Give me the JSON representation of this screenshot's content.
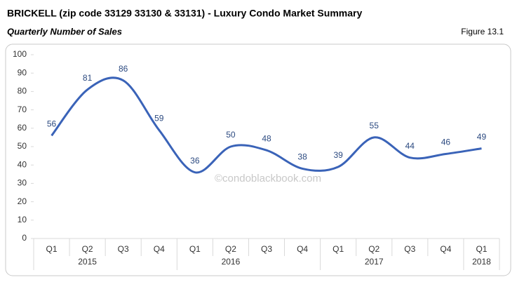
{
  "chart_data": {
    "type": "line",
    "title": "BRICKELL (zip code 33129 33130 & 33131) - Luxury Condo Market Summary",
    "subtitle": "Quarterly Number of Sales",
    "figure_label": "Figure 13.1",
    "watermark": "©condoblackbook.com",
    "groups": [
      {
        "label": "2015",
        "categories": [
          "Q1",
          "Q2",
          "Q3",
          "Q4"
        ]
      },
      {
        "label": "2016",
        "categories": [
          "Q1",
          "Q2",
          "Q3",
          "Q4"
        ]
      },
      {
        "label": "2017",
        "categories": [
          "Q1",
          "Q2",
          "Q3",
          "Q4"
        ]
      },
      {
        "label": "2018",
        "categories": [
          "Q1"
        ]
      }
    ],
    "values": [
      56,
      81,
      86,
      59,
      36,
      50,
      48,
      38,
      39,
      55,
      44,
      46,
      49
    ],
    "color": "#3a63b8",
    "ylim": [
      0,
      100
    ],
    "yticks": [
      0,
      10,
      20,
      30,
      40,
      50,
      60,
      70,
      80,
      90,
      100
    ],
    "smooth": true
  }
}
